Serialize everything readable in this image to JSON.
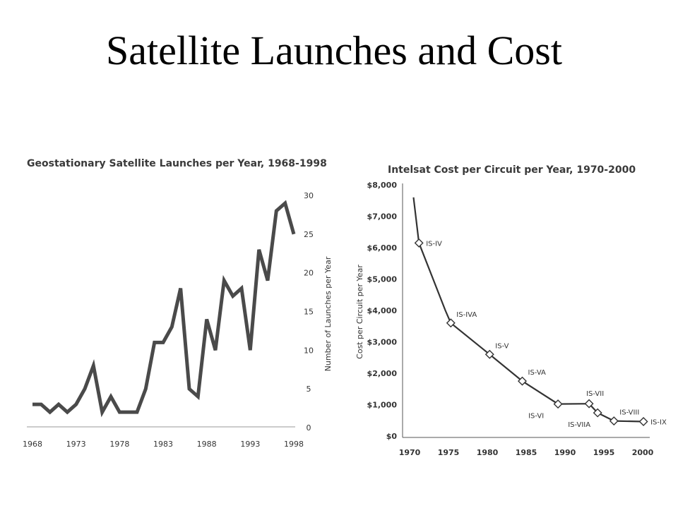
{
  "slide": {
    "title": "Satellite Launches and Cost"
  },
  "chart_data": [
    {
      "type": "line",
      "title": "Geostationary Satellite Launches per Year, 1968-1998",
      "xlabel": "",
      "ylabel": "Number of Launches per Year",
      "xlim": [
        1968,
        1998
      ],
      "ylim": [
        0,
        30
      ],
      "y_axis_side": "right",
      "x_ticks": [
        "1968",
        "1973",
        "1978",
        "1983",
        "1988",
        "1993",
        "1998"
      ],
      "y_ticks": [
        "0",
        "5",
        "10",
        "15",
        "20",
        "25",
        "30"
      ],
      "grid": false,
      "x": [
        1968,
        1969,
        1970,
        1971,
        1972,
        1973,
        1974,
        1975,
        1976,
        1977,
        1978,
        1979,
        1980,
        1981,
        1982,
        1983,
        1984,
        1985,
        1986,
        1987,
        1988,
        1989,
        1990,
        1991,
        1992,
        1993,
        1994,
        1995,
        1996,
        1997,
        1998
      ],
      "values": [
        3,
        3,
        2,
        3,
        2,
        3,
        5,
        8,
        2,
        4,
        2,
        2,
        2,
        5,
        11,
        11,
        13,
        18,
        5,
        4,
        14,
        10,
        19,
        17,
        18,
        10,
        23,
        19,
        28,
        29,
        25
      ]
    },
    {
      "type": "line",
      "title": "Intelsat Cost per Circuit per Year, 1970-2000",
      "xlabel": "",
      "ylabel": "Cost per Circuit per Year",
      "xlim": [
        1970,
        2000
      ],
      "ylim": [
        0,
        8000
      ],
      "x_ticks": [
        "1970",
        "1975",
        "1980",
        "1985",
        "1990",
        "1995",
        "2000"
      ],
      "y_ticks": [
        "$0",
        "$1,000",
        "$2,000",
        "$3,000",
        "$4,000",
        "$5,000",
        "$6,000",
        "$7,000",
        "$8,000"
      ],
      "grid": false,
      "x": [
        1970.5,
        1971.2,
        1974.6,
        1975.3,
        1980.3,
        1984.5,
        1989.1,
        1993.1,
        1994.2,
        1996.3,
        2000.1
      ],
      "values": [
        7600,
        6150,
        4000,
        3600,
        2600,
        1750,
        1020,
        1030,
        740,
        480,
        460
      ],
      "markers": [
        {
          "x": 1971.2,
          "y": 6150,
          "label": "IS-IV",
          "label_pos": "right"
        },
        {
          "x": 1975.3,
          "y": 3600,
          "label": "IS-IVA",
          "label_pos": "above-right"
        },
        {
          "x": 1980.3,
          "y": 2600,
          "label": "IS-V",
          "label_pos": "above-right"
        },
        {
          "x": 1984.5,
          "y": 1750,
          "label": "IS-VA",
          "label_pos": "above-right"
        },
        {
          "x": 1989.1,
          "y": 1020,
          "label": "IS-VI",
          "label_pos": "below-left"
        },
        {
          "x": 1993.1,
          "y": 1030,
          "label": "IS-VII",
          "label_pos": "above"
        },
        {
          "x": 1994.2,
          "y": 740,
          "label": "IS-VIIA",
          "label_pos": "below-left"
        },
        {
          "x": 1996.3,
          "y": 480,
          "label": "IS-VIII",
          "label_pos": "above-right"
        },
        {
          "x": 2000.1,
          "y": 460,
          "label": "IS-IX",
          "label_pos": "right"
        }
      ]
    }
  ]
}
